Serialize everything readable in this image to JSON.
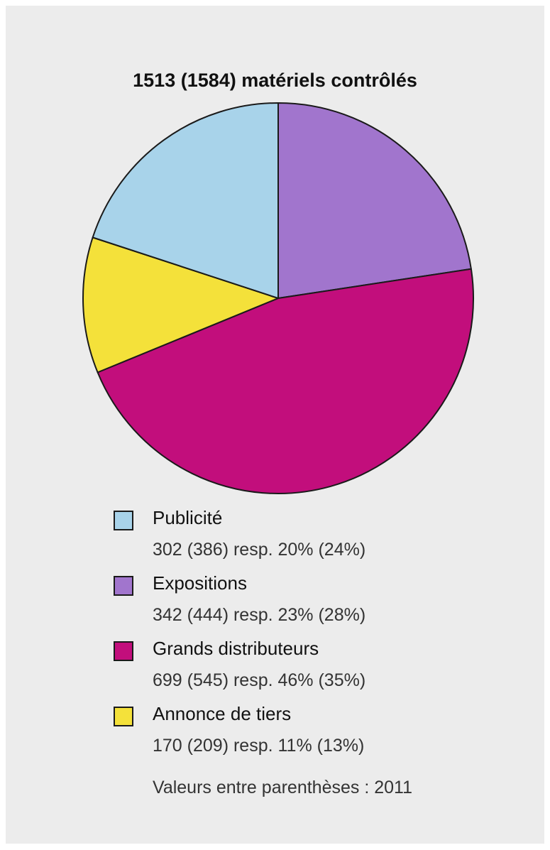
{
  "chart_data": {
    "type": "pie",
    "title": "1513 (1584) matériels contrôlés",
    "slices": [
      {
        "label": "Publicité",
        "value": 302,
        "value_2011": 386,
        "percent": 20,
        "percent_2011": 24,
        "color": "#a8d3ea",
        "detail": "302 (386) resp. 20% (24%)"
      },
      {
        "label": "Expositions",
        "value": 342,
        "value_2011": 444,
        "percent": 23,
        "percent_2011": 28,
        "color": "#a175cd",
        "detail": "342 (444) resp. 23% (28%)"
      },
      {
        "label": "Grands distributeurs",
        "value": 699,
        "value_2011": 545,
        "percent": 46,
        "percent_2011": 35,
        "color": "#c20e7c",
        "detail": "699 (545) resp. 46% (35%)"
      },
      {
        "label": "Annonce de tiers",
        "value": 170,
        "value_2011": 209,
        "percent": 11,
        "percent_2011": 13,
        "color": "#f4e13a",
        "detail": "170 (209) resp. 11% (13%)"
      }
    ],
    "drawing_order": [
      "Expositions",
      "Grands distributeurs",
      "Annonce de tiers",
      "Publicité"
    ],
    "footnote": "Valeurs entre parenthèses : 2011"
  }
}
